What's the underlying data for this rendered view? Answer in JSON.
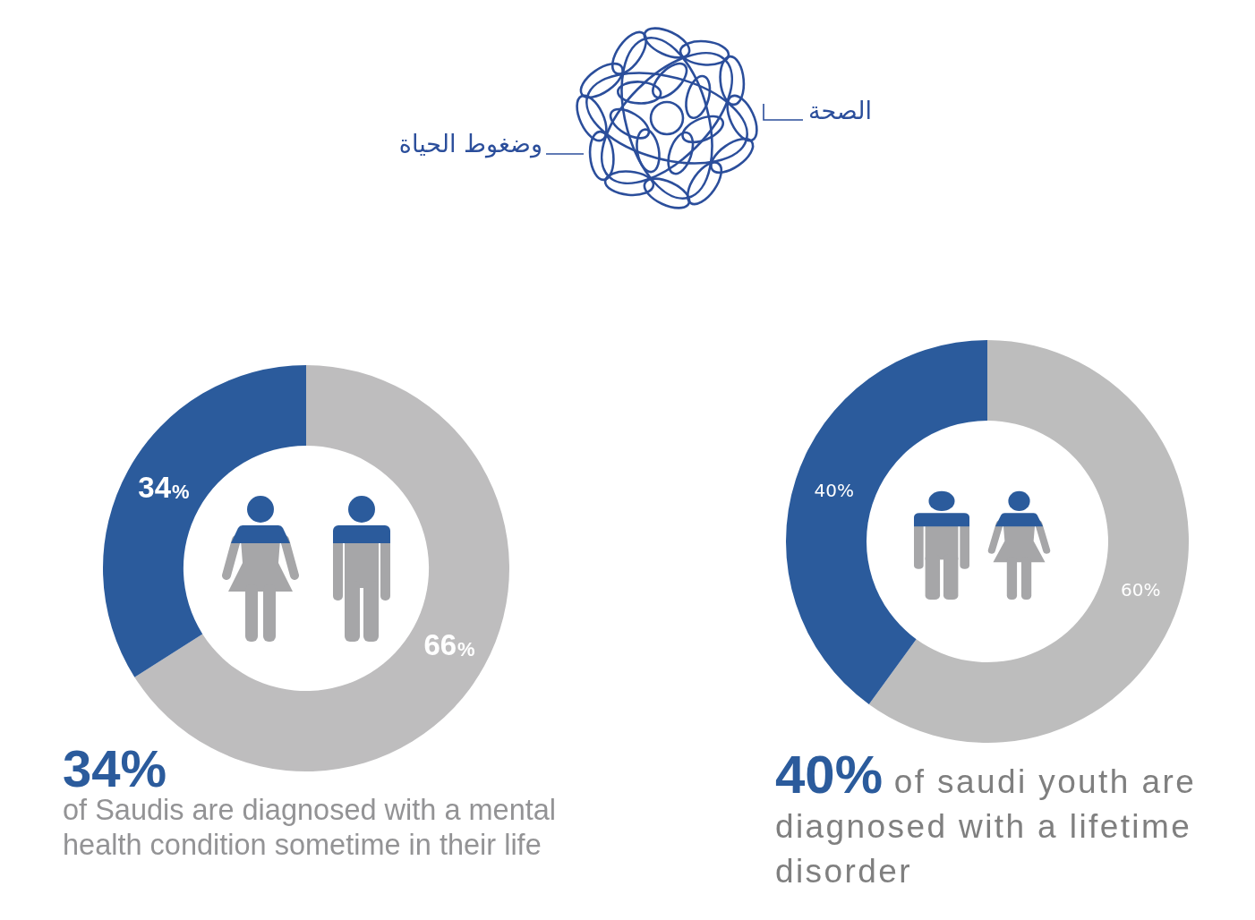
{
  "chart_data": [
    {
      "type": "other",
      "annotations": [
        "الصحة",
        "وضغوط الحياة"
      ]
    },
    {
      "type": "donut",
      "categories": [
        null,
        null
      ],
      "values": [
        66,
        34
      ],
      "colors": [
        "#bebdbe",
        "#2b5b9c"
      ],
      "value_labels": [
        "66%",
        "34%"
      ],
      "annotations": [
        "34%",
        "of Saudis are diagnosed with a mental health condition sometime in their life"
      ]
    },
    {
      "type": "donut",
      "categories": [
        null,
        null
      ],
      "values": [
        60,
        40
      ],
      "colors": [
        "#bdbdbd",
        "#2b5b9c"
      ],
      "value_labels": [
        "60%",
        "40%"
      ],
      "annotations": [
        "40% of saudi youth are diagnosed with a lifetime disorder"
      ]
    }
  ]
}
